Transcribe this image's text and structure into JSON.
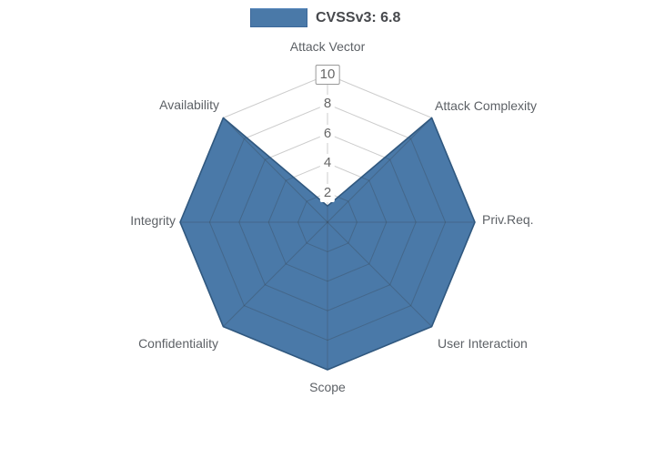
{
  "page": {
    "background": "#ffffff"
  },
  "legend": {
    "label": "CVSSv3: 6.8"
  },
  "chart_data": {
    "type": "radar",
    "title": "CVSSv3: 6.8",
    "categories": [
      "Attack Vector",
      "Attack Complexity",
      "Priv.Req.",
      "User Interaction",
      "Scope",
      "Confidentiality",
      "Integrity",
      "Availability"
    ],
    "series": [
      {
        "name": "CVSSv3: 6.8",
        "values": [
          1.1,
          10,
          10,
          10,
          10,
          10,
          10,
          10
        ]
      }
    ],
    "radial_axis": {
      "min": 0,
      "max": 10,
      "ticks": [
        2,
        4,
        6,
        8,
        10
      ]
    },
    "grid": true,
    "legend_position": "top-center",
    "colors": {
      "fill": "#4a79a8",
      "line": "#30587f",
      "grid": "rgba(50,50,50,0.25)",
      "tick_text": "#666666",
      "tick_box_bg": "#ffffff",
      "tick_box_border": "#999999",
      "category_text": "#5d6166",
      "legend_text": "#47494d"
    }
  }
}
